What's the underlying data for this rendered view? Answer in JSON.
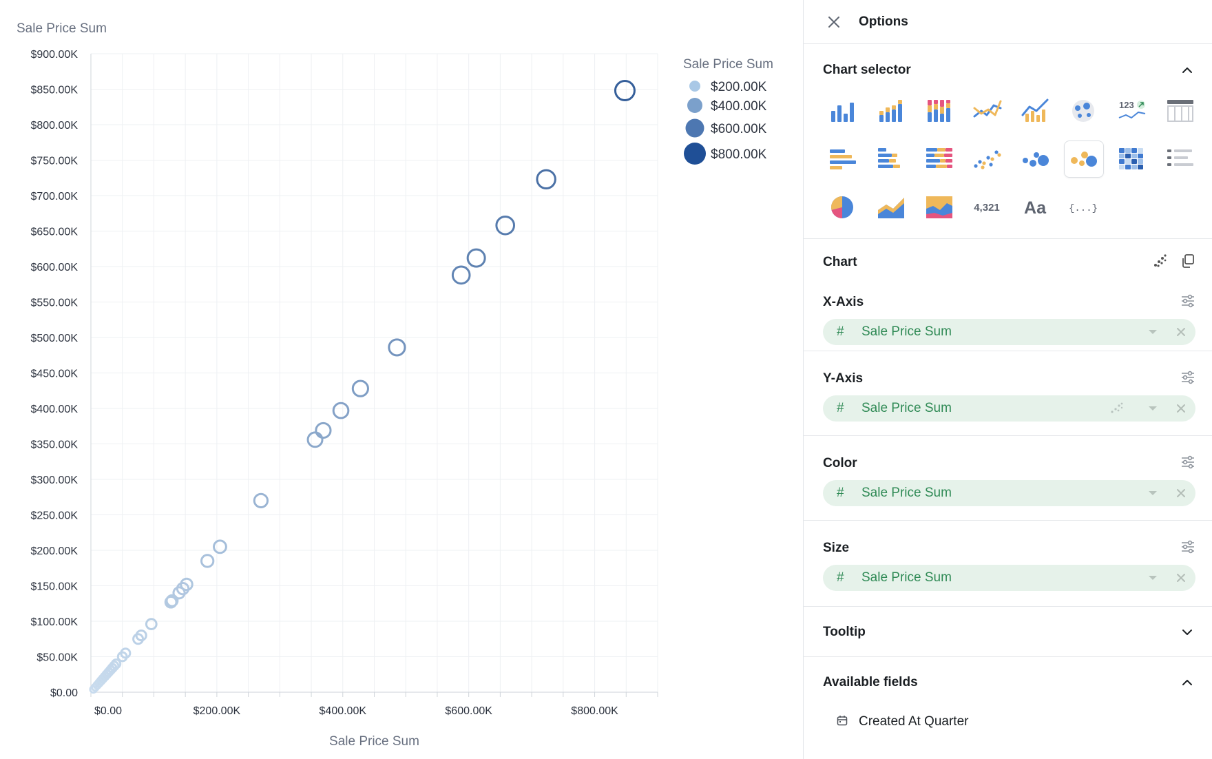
{
  "chart_data": {
    "type": "scatter",
    "title": "Sale Price Sum",
    "xlabel": "Sale Price Sum",
    "ylabel": "",
    "xlim": [
      0,
      900000
    ],
    "ylim": [
      0,
      900000
    ],
    "x_ticks": [
      "$0.00",
      "$200.00K",
      "$400.00K",
      "$600.00K",
      "$800.00K"
    ],
    "x_tick_values": [
      0,
      200000,
      400000,
      600000,
      800000
    ],
    "y_ticks": [
      "$0.00",
      "$50.00K",
      "$100.00K",
      "$150.00K",
      "$200.00K",
      "$250.00K",
      "$300.00K",
      "$350.00K",
      "$400.00K",
      "$450.00K",
      "$500.00K",
      "$550.00K",
      "$600.00K",
      "$650.00K",
      "$700.00K",
      "$750.00K",
      "$800.00K",
      "$850.00K",
      "$900.00K"
    ],
    "y_tick_values": [
      0,
      50000,
      100000,
      150000,
      200000,
      250000,
      300000,
      350000,
      400000,
      450000,
      500000,
      550000,
      600000,
      650000,
      700000,
      750000,
      800000,
      850000,
      900000
    ],
    "grid": true,
    "legend": {
      "title": "Sale Price Sum",
      "placement": "top-right",
      "entries": [
        {
          "label": "$200.00K",
          "value": 200000
        },
        {
          "label": "$400.00K",
          "value": 400000
        },
        {
          "label": "$600.00K",
          "value": 600000
        },
        {
          "label": "$800.00K",
          "value": 800000
        }
      ]
    },
    "points": [
      {
        "x": 848000,
        "y": 848000
      },
      {
        "x": 723000,
        "y": 723000
      },
      {
        "x": 658000,
        "y": 658000
      },
      {
        "x": 612000,
        "y": 612000
      },
      {
        "x": 588000,
        "y": 588000
      },
      {
        "x": 486000,
        "y": 486000
      },
      {
        "x": 428000,
        "y": 428000
      },
      {
        "x": 397000,
        "y": 397000
      },
      {
        "x": 369000,
        "y": 369000
      },
      {
        "x": 356000,
        "y": 356000
      },
      {
        "x": 270000,
        "y": 270000
      },
      {
        "x": 205000,
        "y": 205000
      },
      {
        "x": 185000,
        "y": 185000
      },
      {
        "x": 152000,
        "y": 152000
      },
      {
        "x": 146000,
        "y": 146000
      },
      {
        "x": 140000,
        "y": 140000
      },
      {
        "x": 129000,
        "y": 129000
      },
      {
        "x": 127000,
        "y": 127000
      },
      {
        "x": 96000,
        "y": 96000
      },
      {
        "x": 80000,
        "y": 80000
      },
      {
        "x": 75000,
        "y": 75000
      },
      {
        "x": 55000,
        "y": 55000
      },
      {
        "x": 50000,
        "y": 50000
      },
      {
        "x": 40000,
        "y": 40000
      },
      {
        "x": 37000,
        "y": 37000
      },
      {
        "x": 34000,
        "y": 34000
      },
      {
        "x": 31000,
        "y": 31000
      },
      {
        "x": 28000,
        "y": 28000
      },
      {
        "x": 25000,
        "y": 25000
      },
      {
        "x": 22000,
        "y": 22000
      },
      {
        "x": 19000,
        "y": 19000
      },
      {
        "x": 16000,
        "y": 16000
      },
      {
        "x": 13000,
        "y": 13000
      },
      {
        "x": 10000,
        "y": 10000
      },
      {
        "x": 7000,
        "y": 7000
      },
      {
        "x": 4000,
        "y": 4000
      }
    ]
  },
  "colors": {
    "scale_low": "#c9dcee",
    "scale_high": "#355f9a",
    "legend_low": "#a9c8e6",
    "legend_high": "#1f4f96",
    "pill_bg": "#e6f2ea",
    "pill_text": "#2f8a55"
  },
  "panel": {
    "title": "Options",
    "close_icon": "close-icon",
    "selector": {
      "title": "Chart selector",
      "selected": "bubble",
      "types": [
        {
          "id": "bar",
          "icon": "bar-chart-icon"
        },
        {
          "id": "stacked-bar",
          "icon": "stacked-bar-chart-icon"
        },
        {
          "id": "stacked-100-bar",
          "icon": "stacked-100-bar-chart-icon"
        },
        {
          "id": "line",
          "icon": "line-chart-icon"
        },
        {
          "id": "combo",
          "icon": "combo-chart-icon"
        },
        {
          "id": "map",
          "icon": "map-chart-icon"
        },
        {
          "id": "kpi",
          "icon": "kpi-chart-icon",
          "text": "123"
        },
        {
          "id": "table",
          "icon": "table-chart-icon"
        },
        {
          "id": "horizontal-bar",
          "icon": "horizontal-bar-chart-icon"
        },
        {
          "id": "horizontal-stacked-bar",
          "icon": "horizontal-stacked-bar-chart-icon"
        },
        {
          "id": "horizontal-stacked-100-bar",
          "icon": "horizontal-stacked-100-bar-chart-icon"
        },
        {
          "id": "scatter",
          "icon": "scatter-chart-icon"
        },
        {
          "id": "bubble-blue",
          "icon": "bubble-chart-icon"
        },
        {
          "id": "bubble",
          "icon": "bubble-color-chart-icon"
        },
        {
          "id": "heatmap",
          "icon": "heatmap-chart-icon"
        },
        {
          "id": "list",
          "icon": "list-chart-icon"
        },
        {
          "id": "pie",
          "icon": "pie-chart-icon"
        },
        {
          "id": "area",
          "icon": "area-chart-icon"
        },
        {
          "id": "stacked-area",
          "icon": "stacked-area-chart-icon"
        },
        {
          "id": "number",
          "icon": "number-chart-icon",
          "text": "4,321"
        },
        {
          "id": "text",
          "icon": "text-chart-icon",
          "text": "Aa"
        },
        {
          "id": "json",
          "icon": "json-chart-icon",
          "text": "{...}"
        }
      ]
    },
    "chart": {
      "title": "Chart",
      "fields": [
        {
          "label": "X-Axis",
          "value": "Sale Price Sum",
          "hash": "#"
        },
        {
          "label": "Y-Axis",
          "value": "Sale Price Sum",
          "hash": "#"
        },
        {
          "label": "Color",
          "value": "Sale Price Sum",
          "hash": "#"
        },
        {
          "label": "Size",
          "value": "Sale Price Sum",
          "hash": "#"
        }
      ]
    },
    "tooltip": {
      "title": "Tooltip"
    },
    "available": {
      "title": "Available fields",
      "items": [
        {
          "label": "Created At Quarter",
          "icon": "calendar-icon"
        }
      ]
    }
  }
}
